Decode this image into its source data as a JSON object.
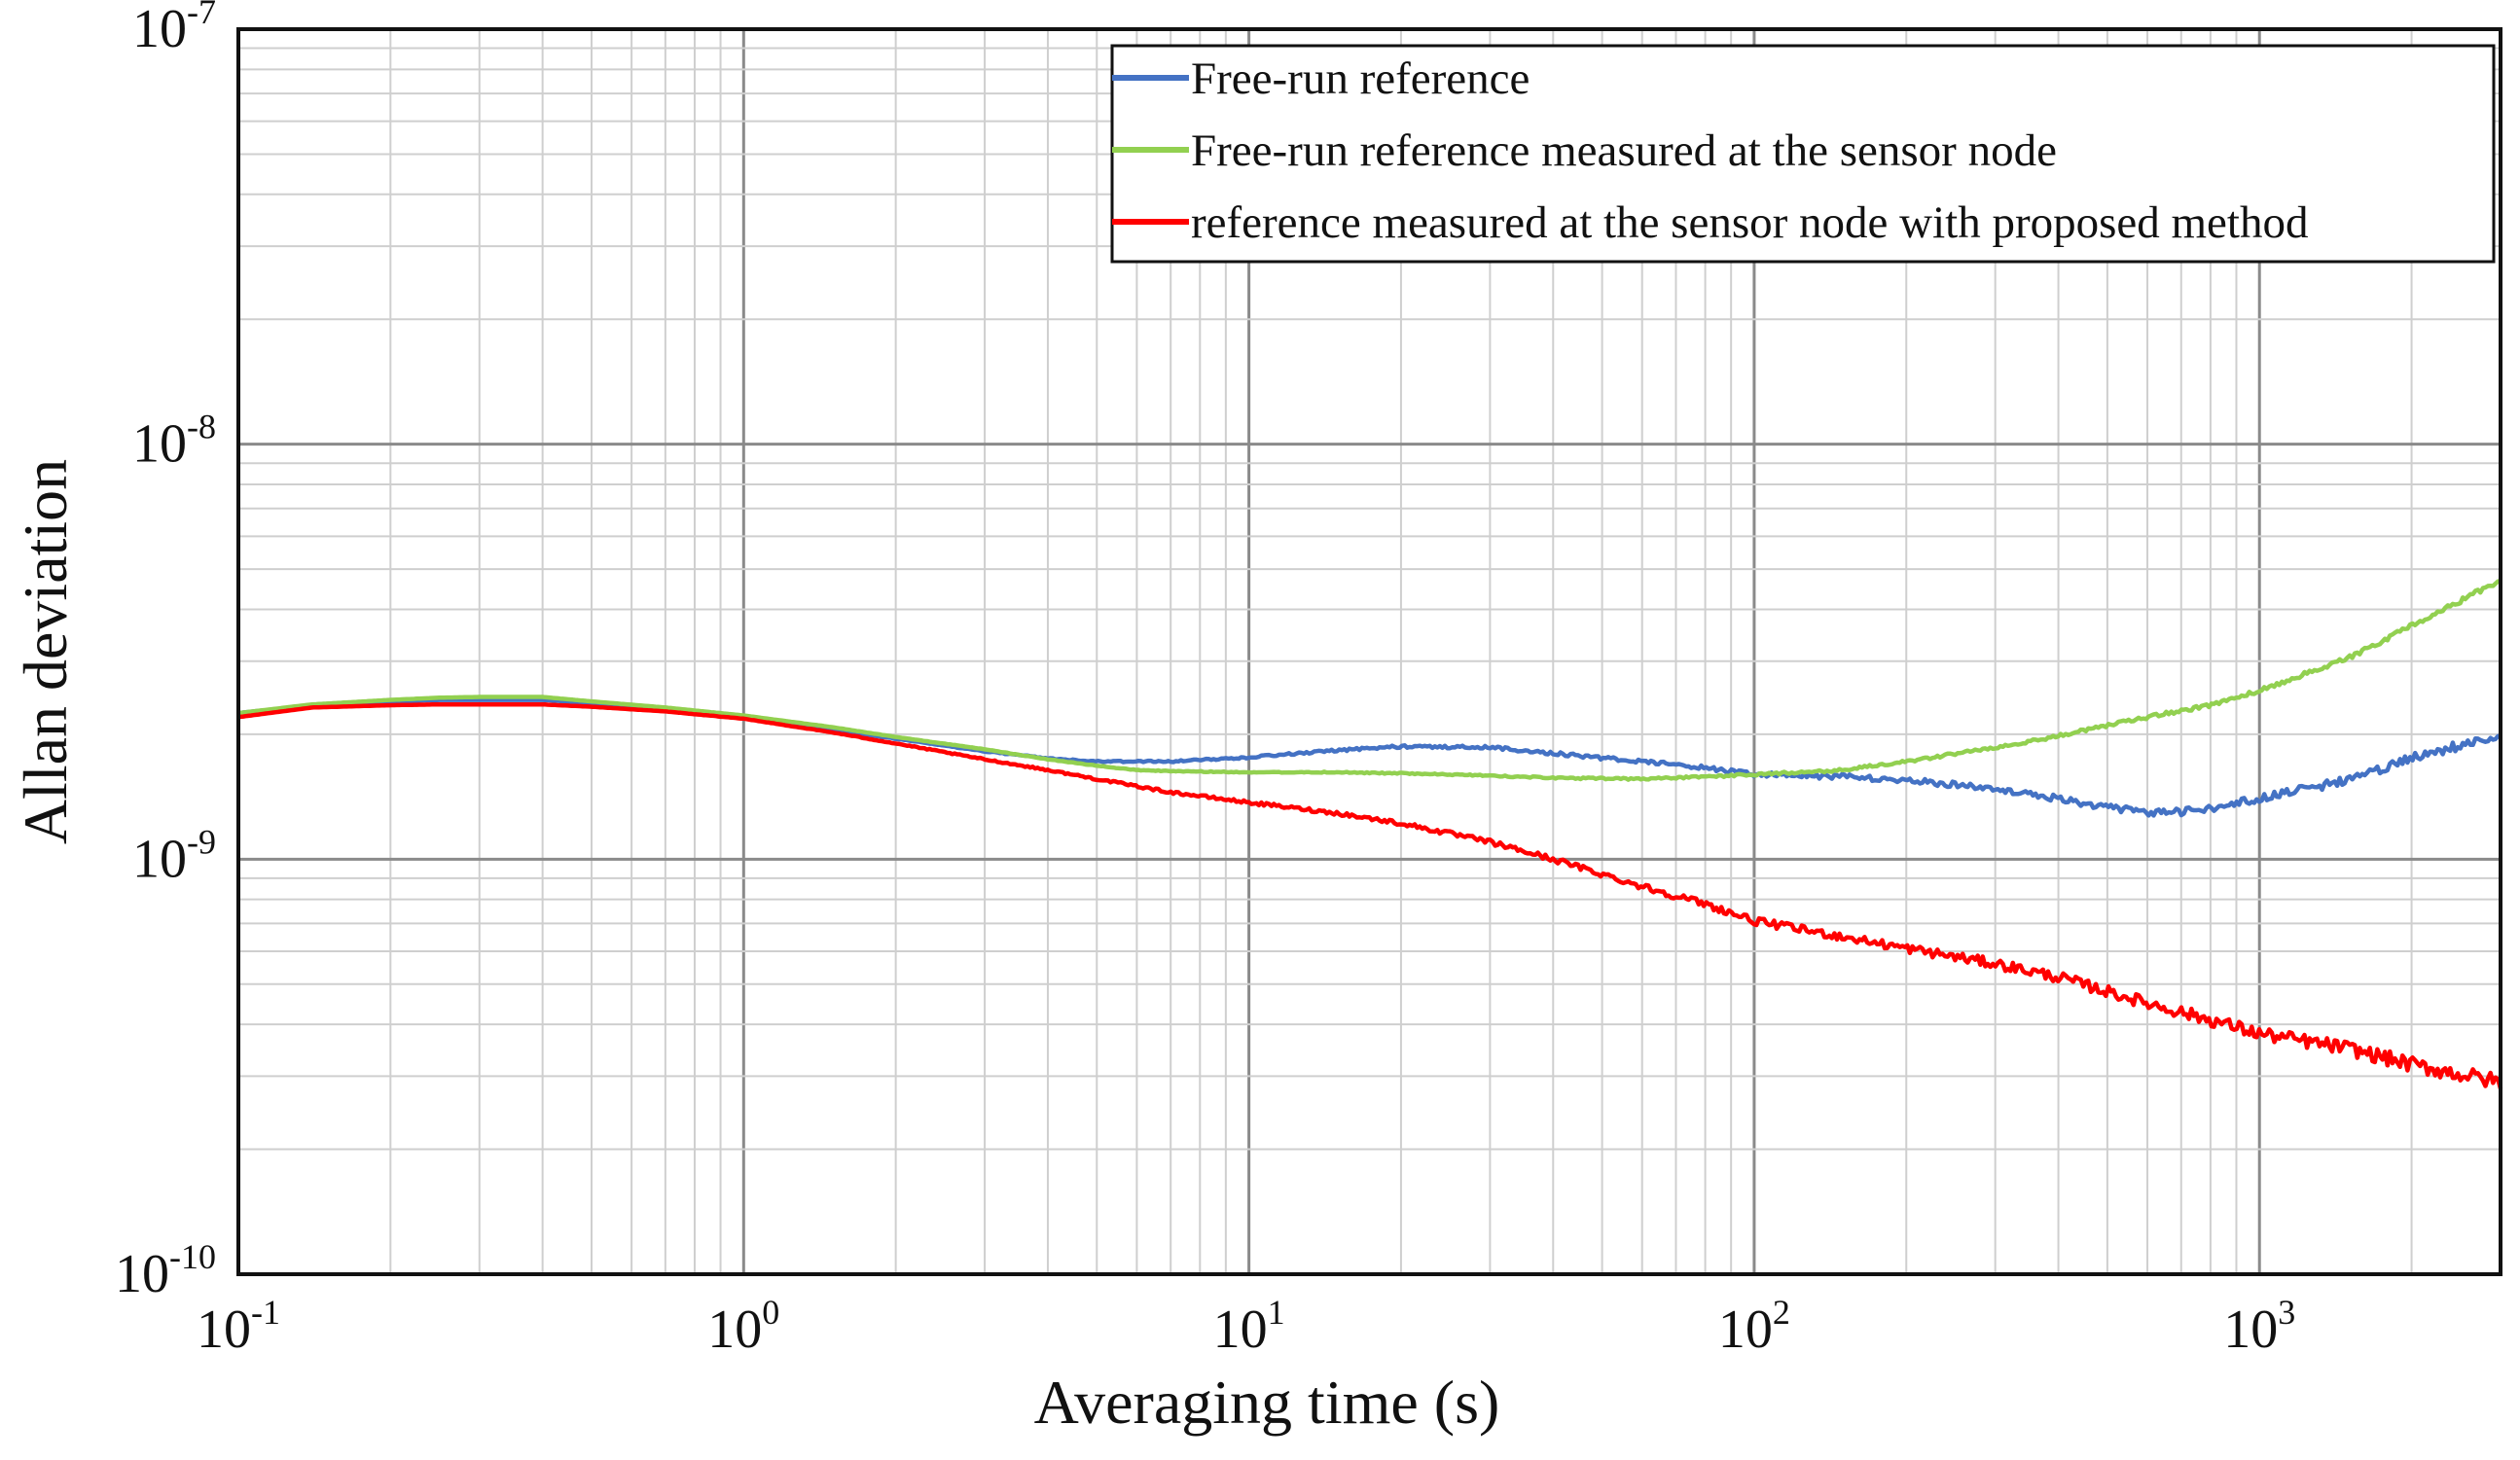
{
  "chart_data": {
    "type": "line",
    "title": "",
    "xlabel": "Averaging time (s)",
    "ylabel": "Allan deviation",
    "xscale": "log",
    "yscale": "log",
    "xlim": [
      0.1,
      3000
    ],
    "ylim": [
      1e-10,
      1e-07
    ],
    "grid": true,
    "legend_position": "top-right",
    "x_ticks": [
      {
        "base": "10",
        "exp": "-1",
        "value": 0.1
      },
      {
        "base": "10",
        "exp": "0",
        "value": 1
      },
      {
        "base": "10",
        "exp": "1",
        "value": 10
      },
      {
        "base": "10",
        "exp": "2",
        "value": 100
      },
      {
        "base": "10",
        "exp": "3",
        "value": 1000
      }
    ],
    "y_ticks": [
      {
        "base": "10",
        "exp": "-10",
        "value": 1e-10
      },
      {
        "base": "10",
        "exp": "-9",
        "value": 1e-09
      },
      {
        "base": "10",
        "exp": "-8",
        "value": 1e-08
      },
      {
        "base": "10",
        "exp": "-7",
        "value": 1e-07
      }
    ],
    "series": [
      {
        "name": "Free-run reference",
        "color": "#4472c4",
        "noise": 0.012,
        "x": [
          0.1,
          0.14,
          0.2,
          0.25,
          0.3,
          0.4,
          0.5,
          0.7,
          1,
          1.5,
          2,
          3,
          4,
          5,
          7,
          10,
          15,
          20,
          30,
          40,
          60,
          80,
          100,
          150,
          200,
          300,
          400,
          500,
          600,
          700,
          800,
          1000,
          1500,
          2000,
          3000
        ],
        "y": [
          2.25e-09,
          2.35e-09,
          2.4e-09,
          2.42e-09,
          2.42e-09,
          2.42e-09,
          2.38e-09,
          2.3e-09,
          2.2e-09,
          2.05e-09,
          1.95e-09,
          1.82e-09,
          1.75e-09,
          1.72e-09,
          1.72e-09,
          1.76e-09,
          1.83e-09,
          1.87e-09,
          1.86e-09,
          1.8e-09,
          1.72e-09,
          1.66e-09,
          1.6e-09,
          1.58e-09,
          1.55e-09,
          1.48e-09,
          1.4e-09,
          1.33e-09,
          1.3e-09,
          1.3e-09,
          1.32e-09,
          1.4e-09,
          1.55e-09,
          1.75e-09,
          2e-09
        ]
      },
      {
        "name": "Free-run reference measured at the sensor node",
        "color": "#92d050",
        "noise": 0.006,
        "x": [
          0.1,
          0.14,
          0.2,
          0.25,
          0.3,
          0.4,
          0.5,
          0.7,
          1,
          1.5,
          2,
          3,
          4,
          5,
          6,
          7,
          10,
          15,
          20,
          30,
          40,
          60,
          80,
          100,
          150,
          200,
          300,
          400,
          500,
          600,
          800,
          1000,
          1500,
          2000,
          3000
        ],
        "y": [
          2.25e-09,
          2.36e-09,
          2.42e-09,
          2.45e-09,
          2.46e-09,
          2.46e-09,
          2.4e-09,
          2.32e-09,
          2.22e-09,
          2.08e-09,
          1.97e-09,
          1.84e-09,
          1.74e-09,
          1.68e-09,
          1.64e-09,
          1.63e-09,
          1.62e-09,
          1.62e-09,
          1.61e-09,
          1.59e-09,
          1.57e-09,
          1.56e-09,
          1.58e-09,
          1.6e-09,
          1.64e-09,
          1.72e-09,
          1.86e-09,
          1.98e-09,
          2.1e-09,
          2.2e-09,
          2.35e-09,
          2.55e-09,
          3.05e-09,
          3.65e-09,
          4.7e-09
        ]
      },
      {
        "name": "reference measured at the sensor node with proposed method",
        "color": "#ff0000",
        "noise": 0.02,
        "x": [
          0.1,
          0.14,
          0.2,
          0.25,
          0.3,
          0.4,
          0.5,
          0.7,
          1,
          1.5,
          2,
          3,
          4,
          5,
          7,
          10,
          15,
          20,
          30,
          40,
          60,
          80,
          100,
          150,
          200,
          300,
          400,
          500,
          600,
          800,
          1000,
          1500,
          2000,
          3000
        ],
        "y": [
          2.2e-09,
          2.32e-09,
          2.35e-09,
          2.36e-09,
          2.36e-09,
          2.36e-09,
          2.33e-09,
          2.27e-09,
          2.18e-09,
          2.02e-09,
          1.9e-09,
          1.74e-09,
          1.64e-09,
          1.56e-09,
          1.45e-09,
          1.37e-09,
          1.29e-09,
          1.22e-09,
          1.1e-09,
          1e-09,
          8.6e-10,
          7.8e-10,
          7.1e-10,
          6.5e-10,
          6.1e-10,
          5.6e-10,
          5.2e-10,
          4.8e-10,
          4.5e-10,
          4.1e-10,
          3.8e-10,
          3.5e-10,
          3.2e-10,
          2.9e-10
        ]
      }
    ]
  }
}
